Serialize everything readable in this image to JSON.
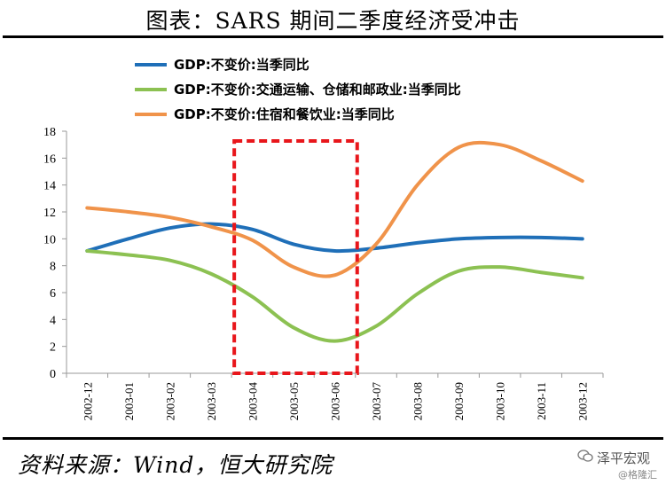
{
  "title": "图表：SARS 期间二季度经济受冲击",
  "source": "资料来源：Wind，恒大研究院",
  "watermark": {
    "brand": "泽平宏观",
    "sub": "@格隆汇"
  },
  "chart_data": {
    "type": "line",
    "categories": [
      "2002-12",
      "2003-01",
      "2003-02",
      "2003-03",
      "2003-04",
      "2003-05",
      "2003-06",
      "2003-07",
      "2003-08",
      "2003-09",
      "2003-10",
      "2003-11",
      "2003-12"
    ],
    "ylim": [
      0,
      18
    ],
    "yticks": [
      0,
      2,
      4,
      6,
      8,
      10,
      12,
      14,
      16,
      18
    ],
    "grid": false,
    "legend_position": "top",
    "series": [
      {
        "name": "GDP:不变价:当季同比",
        "color": "#1f6fb8",
        "values": [
          9.1,
          10.0,
          10.8,
          11.1,
          10.7,
          9.6,
          9.1,
          9.3,
          9.7,
          10.0,
          10.1,
          10.1,
          10.0
        ]
      },
      {
        "name": "GDP:不变价:交通运输、仓储和邮政业:当季同比",
        "color": "#8cc152",
        "values": [
          9.1,
          8.8,
          8.4,
          7.4,
          5.7,
          3.4,
          2.4,
          3.5,
          5.9,
          7.6,
          7.9,
          7.5,
          7.1
        ]
      },
      {
        "name": "GDP:不变价:住宿和餐饮业:当季同比",
        "color": "#f0934a",
        "values": [
          12.3,
          12.0,
          11.6,
          10.9,
          9.9,
          7.9,
          7.3,
          9.6,
          14.0,
          16.8,
          17.0,
          15.8,
          14.3
        ]
      }
    ],
    "annotation": {
      "type": "highlight-box",
      "style": "dashed",
      "color": "#e8161b",
      "from_category": "2003-04",
      "to_category": "2003-06"
    }
  }
}
